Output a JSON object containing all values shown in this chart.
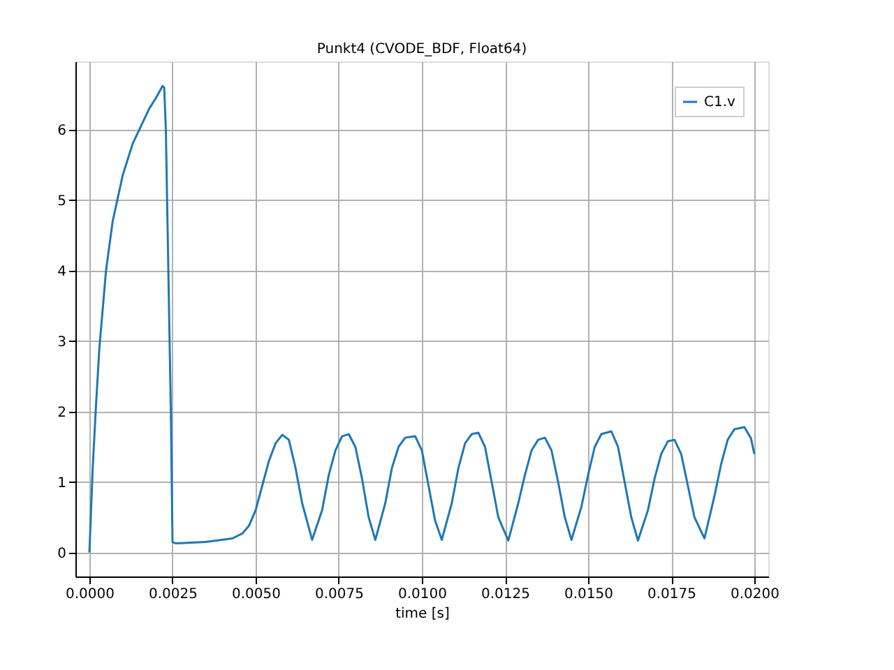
{
  "chart_data": {
    "type": "line",
    "title": "Punkt4 (CVODE_BDF, Float64)",
    "xlabel": "time [s]",
    "x": [
      0,
      0.0001,
      0.0002,
      0.0003,
      0.0005,
      0.0007,
      0.001,
      0.0013,
      0.0015,
      0.0018,
      0.002,
      0.0022,
      0.00225,
      0.0023,
      0.00245,
      0.0025,
      0.0026,
      0.0035,
      0.0043,
      0.0046,
      0.0048,
      0.005,
      0.0052,
      0.0054,
      0.0056,
      0.0058,
      0.006,
      0.0062,
      0.0064,
      0.0067,
      0.007,
      0.0072,
      0.0074,
      0.0076,
      0.0078,
      0.008,
      0.0082,
      0.0084,
      0.0086,
      0.0089,
      0.0091,
      0.0093,
      0.0095,
      0.0098,
      0.01,
      0.0102,
      0.0104,
      0.0106,
      0.0109,
      0.0111,
      0.0113,
      0.0115,
      0.0117,
      0.0119,
      0.0121,
      0.0123,
      0.0126,
      0.0129,
      0.0131,
      0.0133,
      0.0135,
      0.0137,
      0.0139,
      0.0141,
      0.0143,
      0.0145,
      0.0148,
      0.015,
      0.0152,
      0.0154,
      0.0157,
      0.0159,
      0.0161,
      0.0163,
      0.0165,
      0.0168,
      0.017,
      0.0172,
      0.0174,
      0.0176,
      0.0178,
      0.018,
      0.0182,
      0.0185,
      0.0188,
      0.019,
      0.0192,
      0.0194,
      0.0197,
      0.0199,
      0.02
    ],
    "series": [
      {
        "name": "C1.v",
        "color": "#1f77b4",
        "values": [
          0,
          1.2,
          2.1,
          2.9,
          4.0,
          4.7,
          5.35,
          5.8,
          6.0,
          6.3,
          6.45,
          6.62,
          6.6,
          6.0,
          2.0,
          0.15,
          0.13,
          0.15,
          0.2,
          0.27,
          0.38,
          0.6,
          0.95,
          1.3,
          1.55,
          1.67,
          1.6,
          1.2,
          0.7,
          0.18,
          0.6,
          1.1,
          1.45,
          1.65,
          1.68,
          1.5,
          1.05,
          0.5,
          0.18,
          0.7,
          1.2,
          1.5,
          1.63,
          1.65,
          1.45,
          0.95,
          0.45,
          0.18,
          0.7,
          1.2,
          1.55,
          1.68,
          1.7,
          1.5,
          1.0,
          0.5,
          0.17,
          0.7,
          1.1,
          1.45,
          1.6,
          1.63,
          1.45,
          1.0,
          0.5,
          0.18,
          0.65,
          1.1,
          1.5,
          1.68,
          1.72,
          1.5,
          1.0,
          0.5,
          0.17,
          0.6,
          1.05,
          1.4,
          1.58,
          1.6,
          1.4,
          0.95,
          0.5,
          0.2,
          0.8,
          1.25,
          1.6,
          1.75,
          1.78,
          1.62,
          1.4
        ]
      }
    ],
    "xlim": [
      -0.00042,
      0.02042
    ],
    "ylim": [
      -0.34,
      6.97
    ],
    "xticks": [
      {
        "value": 0,
        "label": "0.0000"
      },
      {
        "value": 0.0025,
        "label": "0.0025"
      },
      {
        "value": 0.005,
        "label": "0.0050"
      },
      {
        "value": 0.0075,
        "label": "0.0075"
      },
      {
        "value": 0.01,
        "label": "0.0100"
      },
      {
        "value": 0.0125,
        "label": "0.0125"
      },
      {
        "value": 0.015,
        "label": "0.0150"
      },
      {
        "value": 0.0175,
        "label": "0.0175"
      },
      {
        "value": 0.02,
        "label": "0.0200"
      }
    ],
    "yticks": [
      0,
      1,
      2,
      3,
      4,
      5,
      6
    ],
    "grid": true,
    "legend": "top right",
    "marker": "none",
    "line_style": "solid"
  }
}
